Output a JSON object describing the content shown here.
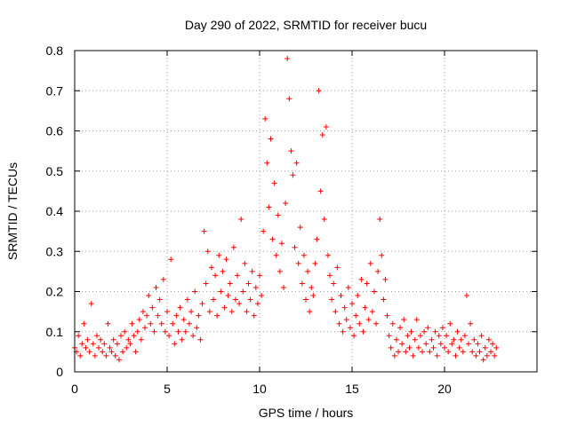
{
  "chart_data": {
    "type": "scatter",
    "title": "Day 290 of 2022, SRMTID for receiver bucu",
    "xlabel": "GPS time / hours",
    "ylabel": "SRMTID / TECUs",
    "xlim": [
      0,
      25
    ],
    "ylim": [
      0,
      0.8
    ],
    "xticks": [
      "0",
      "5",
      "10",
      "15",
      "20"
    ],
    "yticks": [
      "0",
      "0.1",
      "0.2",
      "0.3",
      "0.4",
      "0.5",
      "0.6",
      "0.7",
      "0.8"
    ],
    "grid": true,
    "marker": "+",
    "colors": {
      "series": "#ff0000",
      "axis": "#000000",
      "grid": "#a0a0a0"
    },
    "series": [
      {
        "name": "SRMTID",
        "points": [
          [
            0.0,
            0.06
          ],
          [
            0.1,
            0.05
          ],
          [
            0.2,
            0.09
          ],
          [
            0.3,
            0.04
          ],
          [
            0.4,
            0.07
          ],
          [
            0.5,
            0.12
          ],
          [
            0.6,
            0.06
          ],
          [
            0.7,
            0.08
          ],
          [
            0.8,
            0.05
          ],
          [
            0.9,
            0.17
          ],
          [
            1.0,
            0.07
          ],
          [
            1.1,
            0.04
          ],
          [
            1.2,
            0.09
          ],
          [
            1.3,
            0.06
          ],
          [
            1.4,
            0.08
          ],
          [
            1.5,
            0.05
          ],
          [
            1.6,
            0.07
          ],
          [
            1.7,
            0.04
          ],
          [
            1.8,
            0.12
          ],
          [
            1.9,
            0.06
          ],
          [
            2.0,
            0.05
          ],
          [
            2.1,
            0.08
          ],
          [
            2.2,
            0.04
          ],
          [
            2.3,
            0.07
          ],
          [
            2.4,
            0.03
          ],
          [
            2.5,
            0.09
          ],
          [
            2.6,
            0.05
          ],
          [
            2.7,
            0.1
          ],
          [
            2.8,
            0.06
          ],
          [
            2.9,
            0.08
          ],
          [
            3.0,
            0.07
          ],
          [
            3.1,
            0.12
          ],
          [
            3.2,
            0.09
          ],
          [
            3.3,
            0.05
          ],
          [
            3.4,
            0.1
          ],
          [
            3.5,
            0.13
          ],
          [
            3.6,
            0.08
          ],
          [
            3.7,
            0.15
          ],
          [
            3.8,
            0.11
          ],
          [
            3.9,
            0.14
          ],
          [
            4.0,
            0.19
          ],
          [
            4.1,
            0.12
          ],
          [
            4.2,
            0.16
          ],
          [
            4.3,
            0.1
          ],
          [
            4.4,
            0.21
          ],
          [
            4.5,
            0.14
          ],
          [
            4.6,
            0.18
          ],
          [
            4.7,
            0.12
          ],
          [
            4.8,
            0.23
          ],
          [
            4.9,
            0.1
          ],
          [
            5.0,
            0.15
          ],
          [
            5.1,
            0.09
          ],
          [
            5.2,
            0.28
          ],
          [
            5.3,
            0.12
          ],
          [
            5.4,
            0.07
          ],
          [
            5.5,
            0.14
          ],
          [
            5.6,
            0.1
          ],
          [
            5.7,
            0.16
          ],
          [
            5.8,
            0.08
          ],
          [
            5.9,
            0.13
          ],
          [
            6.0,
            0.1
          ],
          [
            6.1,
            0.18
          ],
          [
            6.2,
            0.12
          ],
          [
            6.3,
            0.15
          ],
          [
            6.4,
            0.09
          ],
          [
            6.5,
            0.2
          ],
          [
            6.6,
            0.11
          ],
          [
            6.7,
            0.14
          ],
          [
            6.8,
            0.08
          ],
          [
            6.9,
            0.17
          ],
          [
            7.0,
            0.35
          ],
          [
            7.1,
            0.22
          ],
          [
            7.2,
            0.3
          ],
          [
            7.3,
            0.15
          ],
          [
            7.4,
            0.26
          ],
          [
            7.5,
            0.18
          ],
          [
            7.6,
            0.24
          ],
          [
            7.7,
            0.14
          ],
          [
            7.8,
            0.29
          ],
          [
            7.9,
            0.2
          ],
          [
            8.0,
            0.25
          ],
          [
            8.1,
            0.16
          ],
          [
            8.2,
            0.28
          ],
          [
            8.3,
            0.19
          ],
          [
            8.4,
            0.22
          ],
          [
            8.5,
            0.15
          ],
          [
            8.6,
            0.31
          ],
          [
            8.7,
            0.18
          ],
          [
            8.8,
            0.24
          ],
          [
            8.9,
            0.17
          ],
          [
            9.0,
            0.38
          ],
          [
            9.1,
            0.2
          ],
          [
            9.2,
            0.27
          ],
          [
            9.3,
            0.15
          ],
          [
            9.4,
            0.22
          ],
          [
            9.5,
            0.18
          ],
          [
            9.6,
            0.25
          ],
          [
            9.7,
            0.14
          ],
          [
            9.8,
            0.21
          ],
          [
            9.9,
            0.17
          ],
          [
            10.0,
            0.24
          ],
          [
            10.1,
            0.19
          ],
          [
            10.2,
            0.35
          ],
          [
            10.3,
            0.63
          ],
          [
            10.4,
            0.52
          ],
          [
            10.5,
            0.41
          ],
          [
            10.6,
            0.58
          ],
          [
            10.7,
            0.33
          ],
          [
            10.8,
            0.47
          ],
          [
            10.9,
            0.29
          ],
          [
            11.0,
            0.39
          ],
          [
            11.1,
            0.25
          ],
          [
            11.2,
            0.32
          ],
          [
            11.3,
            0.21
          ],
          [
            11.4,
            0.42
          ],
          [
            11.5,
            0.78
          ],
          [
            11.6,
            0.68
          ],
          [
            11.7,
            0.55
          ],
          [
            11.8,
            0.49
          ],
          [
            11.9,
            0.31
          ],
          [
            12.0,
            0.52
          ],
          [
            12.1,
            0.27
          ],
          [
            12.2,
            0.36
          ],
          [
            12.3,
            0.22
          ],
          [
            12.4,
            0.29
          ],
          [
            12.5,
            0.18
          ],
          [
            12.6,
            0.25
          ],
          [
            12.7,
            0.15
          ],
          [
            12.8,
            0.21
          ],
          [
            12.9,
            0.19
          ],
          [
            13.0,
            0.27
          ],
          [
            13.1,
            0.33
          ],
          [
            13.2,
            0.7
          ],
          [
            13.3,
            0.45
          ],
          [
            13.4,
            0.59
          ],
          [
            13.5,
            0.38
          ],
          [
            13.6,
            0.61
          ],
          [
            13.7,
            0.29
          ],
          [
            13.8,
            0.24
          ],
          [
            13.9,
            0.18
          ],
          [
            14.0,
            0.22
          ],
          [
            14.1,
            0.15
          ],
          [
            14.2,
            0.26
          ],
          [
            14.3,
            0.12
          ],
          [
            14.4,
            0.19
          ],
          [
            14.5,
            0.1
          ],
          [
            14.6,
            0.16
          ],
          [
            14.7,
            0.13
          ],
          [
            14.8,
            0.21
          ],
          [
            14.9,
            0.11
          ],
          [
            15.0,
            0.17
          ],
          [
            15.1,
            0.09
          ],
          [
            15.2,
            0.14
          ],
          [
            15.3,
            0.19
          ],
          [
            15.4,
            0.12
          ],
          [
            15.5,
            0.23
          ],
          [
            15.6,
            0.1
          ],
          [
            15.7,
            0.16
          ],
          [
            15.8,
            0.22
          ],
          [
            15.9,
            0.13
          ],
          [
            16.0,
            0.27
          ],
          [
            16.1,
            0.15
          ],
          [
            16.2,
            0.2
          ],
          [
            16.3,
            0.12
          ],
          [
            16.4,
            0.25
          ],
          [
            16.5,
            0.38
          ],
          [
            16.6,
            0.29
          ],
          [
            16.7,
            0.18
          ],
          [
            16.8,
            0.23
          ],
          [
            16.9,
            0.14
          ],
          [
            17.0,
            0.09
          ],
          [
            17.1,
            0.06
          ],
          [
            17.2,
            0.12
          ],
          [
            17.3,
            0.04
          ],
          [
            17.4,
            0.08
          ],
          [
            17.5,
            0.05
          ],
          [
            17.6,
            0.11
          ],
          [
            17.7,
            0.07
          ],
          [
            17.8,
            0.13
          ],
          [
            17.9,
            0.05
          ],
          [
            18.0,
            0.09
          ],
          [
            18.1,
            0.06
          ],
          [
            18.2,
            0.1
          ],
          [
            18.3,
            0.04
          ],
          [
            18.4,
            0.08
          ],
          [
            18.5,
            0.13
          ],
          [
            18.6,
            0.06
          ],
          [
            18.7,
            0.09
          ],
          [
            18.8,
            0.05
          ],
          [
            18.9,
            0.1
          ],
          [
            19.0,
            0.07
          ],
          [
            19.1,
            0.11
          ],
          [
            19.2,
            0.05
          ],
          [
            19.3,
            0.08
          ],
          [
            19.4,
            0.06
          ],
          [
            19.5,
            0.1
          ],
          [
            19.6,
            0.04
          ],
          [
            19.7,
            0.09
          ],
          [
            19.8,
            0.07
          ],
          [
            19.9,
            0.11
          ],
          [
            20.0,
            0.06
          ],
          [
            20.1,
            0.09
          ],
          [
            20.2,
            0.05
          ],
          [
            20.3,
            0.12
          ],
          [
            20.4,
            0.07
          ],
          [
            20.5,
            0.08
          ],
          [
            20.6,
            0.04
          ],
          [
            20.7,
            0.1
          ],
          [
            20.8,
            0.06
          ],
          [
            20.9,
            0.08
          ],
          [
            21.0,
            0.05
          ],
          [
            21.1,
            0.09
          ],
          [
            21.2,
            0.19
          ],
          [
            21.3,
            0.07
          ],
          [
            21.4,
            0.12
          ],
          [
            21.5,
            0.05
          ],
          [
            21.6,
            0.08
          ],
          [
            21.7,
            0.04
          ],
          [
            21.8,
            0.07
          ],
          [
            21.9,
            0.05
          ],
          [
            22.0,
            0.09
          ],
          [
            22.1,
            0.03
          ],
          [
            22.2,
            0.06
          ],
          [
            22.3,
            0.04
          ],
          [
            22.4,
            0.08
          ],
          [
            22.5,
            0.05
          ],
          [
            22.6,
            0.07
          ],
          [
            22.7,
            0.04
          ],
          [
            22.8,
            0.06
          ]
        ]
      }
    ]
  }
}
